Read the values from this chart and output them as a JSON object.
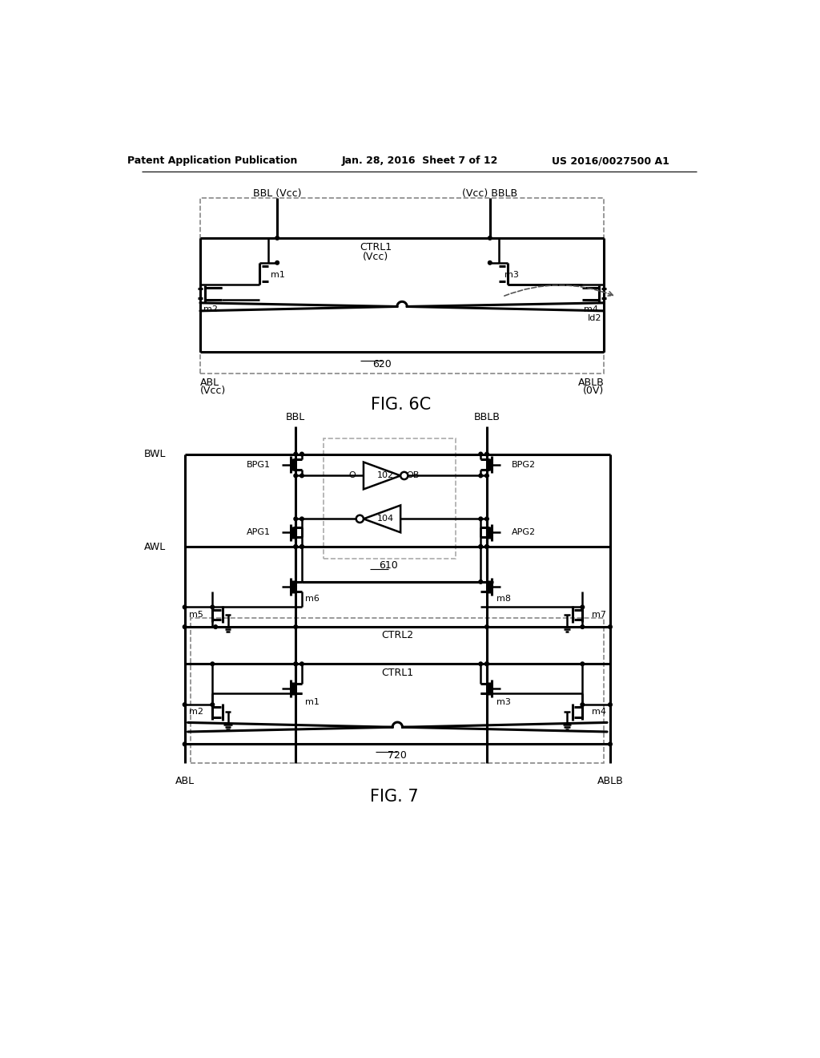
{
  "header_left": "Patent Application Publication",
  "header_center": "Jan. 28, 2016  Sheet 7 of 12",
  "header_right": "US 2016/0027500 A1",
  "bg_color": "#ffffff",
  "line_color": "#000000",
  "fig6c_label": "FIG. 6C",
  "fig7_label": "FIG. 7"
}
